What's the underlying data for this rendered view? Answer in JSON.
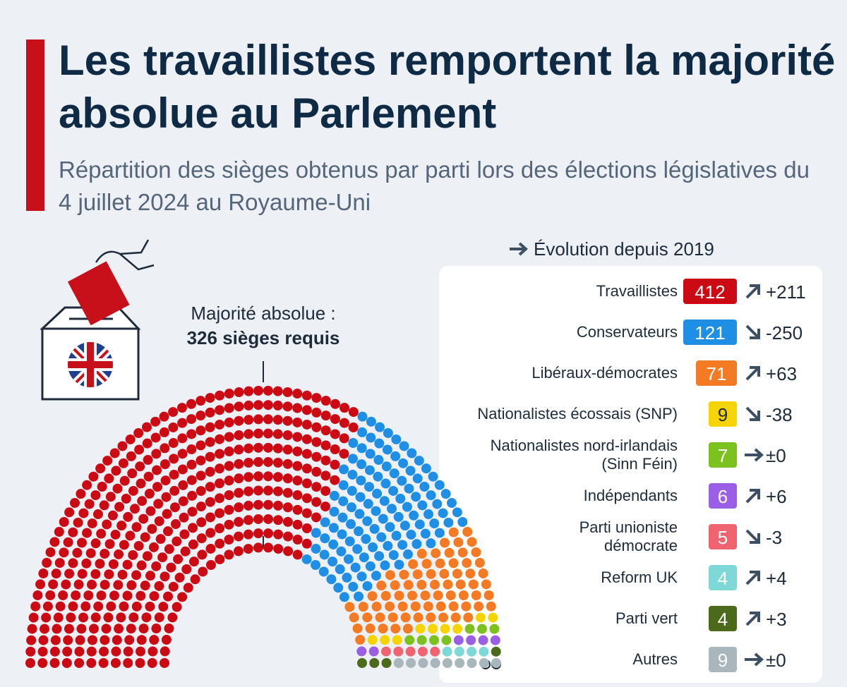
{
  "chart_data": {
    "type": "parliament",
    "title": "Les travaillistes remportent la majorité absolue au Parlement",
    "subtitle": "Répartition des sièges obtenus par parti lors des élections législatives du 4 juillet 2024 au Royaume-Uni",
    "annotation": "Majorité absolue :",
    "annotation_bold": "326 sièges requis",
    "legend_title": "Évolution depuis 2019",
    "categories": [
      "Travaillistes",
      "Conservateurs",
      "Libéraux-démocrates",
      "Nationalistes écossais (SNP)",
      "Nationalistes nord-irlandais\n(Sinn Féin)",
      "Indépendants",
      "Parti unioniste\ndémocrate",
      "Reform UK",
      "Parti vert",
      "Autres"
    ],
    "values": [
      412,
      121,
      71,
      9,
      7,
      6,
      5,
      4,
      4,
      9
    ],
    "colors": [
      "#cc0a14",
      "#1f8fe6",
      "#f47a24",
      "#f5d400",
      "#7bc21e",
      "#9a5fe6",
      "#ef6470",
      "#7fd8d8",
      "#4b6a1c",
      "#a9b6bc"
    ],
    "changes": [
      211,
      -250,
      63,
      -38,
      0,
      6,
      -3,
      4,
      3,
      0
    ],
    "change_labels": [
      "+211",
      "-250",
      "+63",
      "-38",
      "±0",
      "+6",
      "-3",
      "+4",
      "+3",
      "±0"
    ]
  }
}
